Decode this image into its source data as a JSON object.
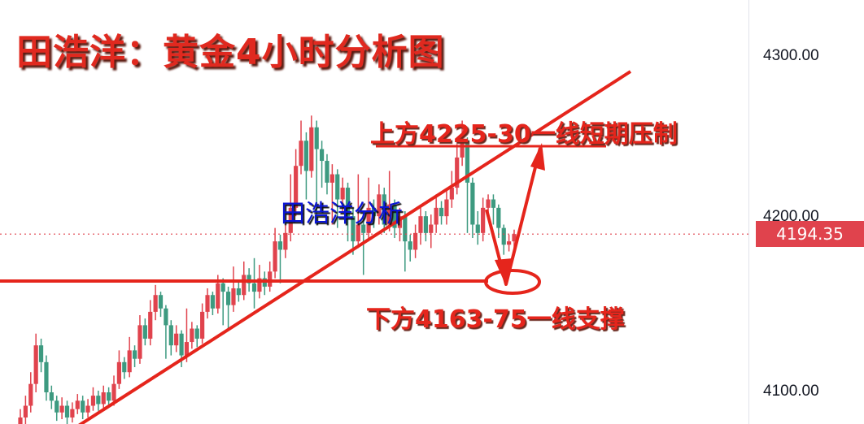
{
  "chart_data": {
    "type": "candlestick",
    "title": "田浩洋：黄金4小时分析图",
    "y_ticks": [
      "4300.00",
      "4200.00",
      "4100.00"
    ],
    "ylim": [
      4075,
      4325
    ],
    "last_price": "4194.35",
    "up_color": "#e0434d",
    "down_color": "#3d9a80",
    "ohlc": [
      [
        4078,
        4090,
        4074,
        4085
      ],
      [
        4085,
        4098,
        4080,
        4092
      ],
      [
        4092,
        4112,
        4088,
        4105
      ],
      [
        4105,
        4135,
        4100,
        4128
      ],
      [
        4128,
        4132,
        4112,
        4118
      ],
      [
        4118,
        4122,
        4095,
        4100
      ],
      [
        4100,
        4104,
        4090,
        4095
      ],
      [
        4095,
        4098,
        4083,
        4088
      ],
      [
        4088,
        4097,
        4084,
        4092
      ],
      [
        4092,
        4095,
        4080,
        4085
      ],
      [
        4085,
        4094,
        4082,
        4090
      ],
      [
        4090,
        4099,
        4087,
        4095
      ],
      [
        4095,
        4098,
        4084,
        4088
      ],
      [
        4088,
        4096,
        4085,
        4092
      ],
      [
        4092,
        4103,
        4089,
        4098
      ],
      [
        4098,
        4101,
        4089,
        4093
      ],
      [
        4093,
        4104,
        4090,
        4100
      ],
      [
        4100,
        4103,
        4091,
        4095
      ],
      [
        4095,
        4110,
        4092,
        4105
      ],
      [
        4105,
        4125,
        4102,
        4118
      ],
      [
        4118,
        4121,
        4108,
        4112
      ],
      [
        4112,
        4133,
        4109,
        4125
      ],
      [
        4125,
        4128,
        4115,
        4120
      ],
      [
        4120,
        4146,
        4117,
        4140
      ],
      [
        4140,
        4144,
        4128,
        4132
      ],
      [
        4132,
        4155,
        4128,
        4148
      ],
      [
        4148,
        4164,
        4143,
        4158
      ],
      [
        4158,
        4160,
        4145,
        4150
      ],
      [
        4150,
        4152,
        4120,
        4140
      ],
      [
        4140,
        4143,
        4122,
        4128
      ],
      [
        4128,
        4140,
        4124,
        4135
      ],
      [
        4135,
        4137,
        4115,
        4122
      ],
      [
        4122,
        4150,
        4118,
        4130
      ],
      [
        4130,
        4142,
        4126,
        4138
      ],
      [
        4138,
        4140,
        4127,
        4132
      ],
      [
        4132,
        4153,
        4129,
        4148
      ],
      [
        4148,
        4162,
        4144,
        4158
      ],
      [
        4158,
        4160,
        4146,
        4150
      ],
      [
        4150,
        4170,
        4147,
        4165
      ],
      [
        4165,
        4168,
        4140,
        4160
      ],
      [
        4160,
        4163,
        4138,
        4152
      ],
      [
        4152,
        4175,
        4148,
        4162
      ],
      [
        4162,
        4166,
        4154,
        4158
      ],
      [
        4158,
        4178,
        4155,
        4170
      ],
      [
        4170,
        4174,
        4160,
        4165
      ],
      [
        4165,
        4180,
        4150,
        4160
      ],
      [
        4160,
        4176,
        4156,
        4168
      ],
      [
        4168,
        4172,
        4158,
        4163
      ],
      [
        4163,
        4178,
        4160,
        4172
      ],
      [
        4172,
        4198,
        4168,
        4190
      ],
      [
        4190,
        4194,
        4165,
        4185
      ],
      [
        4185,
        4200,
        4180,
        4195
      ],
      [
        4195,
        4230,
        4190,
        4210
      ],
      [
        4210,
        4245,
        4205,
        4235
      ],
      [
        4235,
        4262,
        4230,
        4250
      ],
      [
        4250,
        4255,
        4215,
        4232
      ],
      [
        4232,
        4265,
        4228,
        4258
      ],
      [
        4258,
        4262,
        4200,
        4245
      ],
      [
        4245,
        4250,
        4222,
        4238
      ],
      [
        4238,
        4242,
        4218,
        4225
      ],
      [
        4225,
        4236,
        4200,
        4230
      ],
      [
        4230,
        4233,
        4198,
        4215
      ],
      [
        4215,
        4228,
        4208,
        4222
      ],
      [
        4222,
        4225,
        4190,
        4205
      ],
      [
        4205,
        4210,
        4182,
        4190
      ],
      [
        4190,
        4230,
        4186,
        4200
      ],
      [
        4200,
        4205,
        4170,
        4195
      ],
      [
        4195,
        4228,
        4190,
        4210
      ],
      [
        4210,
        4215,
        4198,
        4205
      ],
      [
        4205,
        4224,
        4200,
        4218
      ],
      [
        4218,
        4222,
        4195,
        4200
      ],
      [
        4200,
        4232,
        4196,
        4212
      ],
      [
        4212,
        4215,
        4192,
        4198
      ],
      [
        4198,
        4210,
        4190,
        4205
      ],
      [
        4205,
        4208,
        4172,
        4190
      ],
      [
        4190,
        4194,
        4178,
        4185
      ],
      [
        4185,
        4200,
        4180,
        4195
      ],
      [
        4195,
        4210,
        4188,
        4205
      ],
      [
        4205,
        4208,
        4190,
        4195
      ],
      [
        4195,
        4206,
        4186,
        4200
      ],
      [
        4200,
        4218,
        4195,
        4210
      ],
      [
        4210,
        4214,
        4200,
        4205
      ],
      [
        4205,
        4220,
        4200,
        4215
      ],
      [
        4215,
        4232,
        4210,
        4222
      ],
      [
        4222,
        4248,
        4218,
        4240
      ],
      [
        4240,
        4262,
        4235,
        4250
      ],
      [
        4250,
        4252,
        4195,
        4225
      ],
      [
        4225,
        4228,
        4192,
        4200
      ],
      [
        4200,
        4208,
        4188,
        4195
      ],
      [
        4195,
        4216,
        4190,
        4210
      ],
      [
        4210,
        4218,
        4205,
        4215
      ],
      [
        4215,
        4218,
        4200,
        4210
      ],
      [
        4210,
        4212,
        4192,
        4198
      ],
      [
        4198,
        4200,
        4182,
        4188
      ],
      [
        4188,
        4194,
        4184,
        4190
      ],
      [
        4190,
        4197,
        4186,
        4194.35
      ]
    ],
    "annotations": {
      "resistance_text": "上方4225-30一线短期压制",
      "resistance_level": [
        4225,
        4230
      ],
      "support_text": "下方4163-75一线支撑",
      "support_level": [
        4163,
        4175
      ],
      "brand_text": "田浩洋分析",
      "line_color": "#e5251c"
    }
  }
}
